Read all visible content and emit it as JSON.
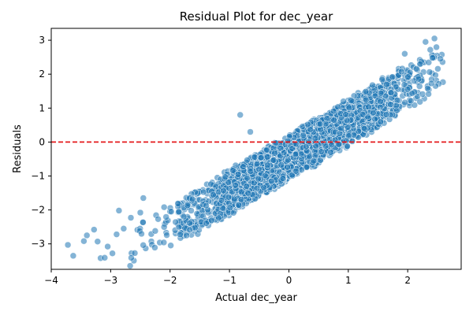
{
  "chart_data": {
    "type": "scatter",
    "title": "Residual Plot for dec_year",
    "xlabel": "Actual dec_year",
    "ylabel": "Residuals",
    "xlim": [
      -4.0,
      2.9
    ],
    "ylim": [
      -3.75,
      3.35
    ],
    "xticks": [
      -4,
      -3,
      -2,
      -1,
      0,
      1,
      2
    ],
    "yticks": [
      -3,
      -2,
      -1,
      0,
      1,
      2,
      3
    ],
    "xtick_labels": [
      "−4",
      "−3",
      "−2",
      "−1",
      "0",
      "1",
      "2"
    ],
    "ytick_labels": [
      "−3",
      "−2",
      "−1",
      "0",
      "1",
      "2",
      "3"
    ],
    "reference_line": {
      "y": 0,
      "color": "#e41a1c",
      "style": "dashed"
    },
    "point_color": "#1f77b4",
    "point_opacity": 0.55,
    "trend": {
      "slope": 1.03,
      "intercept": -0.45
    },
    "series": [
      {
        "name": "residuals",
        "sample_points": [
          {
            "x": -3.72,
            "y": -3.03
          },
          {
            "x": -3.63,
            "y": -3.35
          },
          {
            "x": -3.45,
            "y": -2.92
          },
          {
            "x": -3.4,
            "y": -2.75
          },
          {
            "x": -3.28,
            "y": -2.58
          },
          {
            "x": -3.22,
            "y": -2.93
          },
          {
            "x": -3.17,
            "y": -3.42
          },
          {
            "x": -3.1,
            "y": -3.41
          },
          {
            "x": -3.05,
            "y": -3.08
          },
          {
            "x": -2.97,
            "y": -3.28
          },
          {
            "x": -2.9,
            "y": -2.72
          },
          {
            "x": -2.86,
            "y": -2.02
          },
          {
            "x": -2.78,
            "y": -2.55
          },
          {
            "x": -2.66,
            "y": -2.23
          },
          {
            "x": -2.5,
            "y": -2.08
          },
          {
            "x": -2.45,
            "y": -1.65
          },
          {
            "x": -2.25,
            "y": -2.62
          },
          {
            "x": -2.1,
            "y": -1.92
          },
          {
            "x": -1.98,
            "y": -2.05
          },
          {
            "x": -1.77,
            "y": -2.2
          },
          {
            "x": -0.82,
            "y": 0.8
          },
          {
            "x": -0.65,
            "y": 0.3
          },
          {
            "x": 2.3,
            "y": 2.95
          },
          {
            "x": 2.45,
            "y": 3.05
          },
          {
            "x": 2.55,
            "y": 2.45
          },
          {
            "x": 2.38,
            "y": 2.72
          },
          {
            "x": 1.95,
            "y": 2.6
          }
        ]
      }
    ]
  }
}
